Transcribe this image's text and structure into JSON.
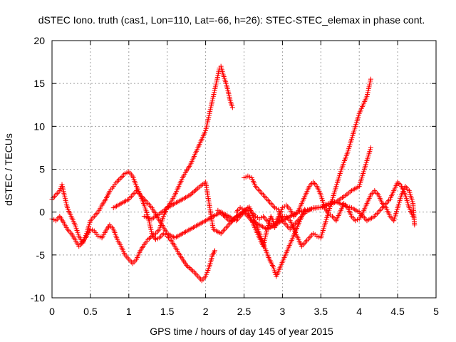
{
  "chart_data": {
    "type": "scatter",
    "title": "dSTEC Iono. truth (cas1, Lon=110, Lat=-66, h=26): STEC-STEC_elemax in phase cont.",
    "xlabel": "GPS time / hours of day 145 of year 2015",
    "ylabel": "dSTEC  / TECUs",
    "xlim": [
      0,
      5
    ],
    "ylim": [
      -10,
      20
    ],
    "grid": true,
    "marker": "+",
    "color": "#ff0000",
    "x_ticks": [
      "0",
      "0.5",
      "1",
      "1.5",
      "2",
      "2.5",
      "3",
      "3.5",
      "4",
      "4.5",
      "5"
    ],
    "y_ticks": [
      "-10",
      "-5",
      "0",
      "5",
      "10",
      "15",
      "20"
    ],
    "x_tick_values": [
      0,
      0.5,
      1,
      1.5,
      2,
      2.5,
      3,
      3.5,
      4,
      4.5,
      5
    ],
    "y_tick_values": [
      -10,
      -5,
      0,
      5,
      10,
      15,
      20
    ],
    "series": [
      {
        "x": [
          0.0,
          0.05,
          0.1,
          0.13,
          0.16,
          0.2,
          0.25,
          0.3,
          0.35,
          0.4,
          0.45,
          0.5,
          0.55,
          0.6,
          0.65,
          0.7,
          0.75,
          0.8,
          0.85,
          0.9,
          0.95,
          1.0,
          1.05,
          1.1,
          1.15,
          1.2,
          1.25,
          1.3,
          1.35,
          1.4,
          1.45,
          1.5,
          1.55,
          1.6,
          1.65,
          1.7,
          1.75,
          1.8,
          1.85,
          1.9,
          1.95,
          2.0,
          2.03,
          2.06,
          2.09,
          2.12
        ],
        "y": [
          1.5,
          2.0,
          2.5,
          3.2,
          2.0,
          0.5,
          -0.5,
          -1.5,
          -2.8,
          -3.6,
          -2.5,
          -1.0,
          -0.5,
          0.0,
          0.8,
          1.5,
          2.4,
          3.0,
          3.6,
          4.0,
          4.5,
          4.7,
          4.2,
          3.0,
          2.0,
          0.8,
          -0.5,
          -2.5,
          -3.2,
          -3.0,
          -2.5,
          -2.8,
          -3.3,
          -4.0,
          -4.8,
          -5.5,
          -6.2,
          -6.6,
          -7.0,
          -7.5,
          -8.0,
          -7.5,
          -6.8,
          -6.0,
          -5.0,
          -4.5
        ]
      },
      {
        "x": [
          0.0,
          0.05,
          0.1,
          0.15,
          0.2,
          0.25,
          0.3,
          0.35,
          0.4,
          0.45,
          0.5,
          0.55,
          0.6,
          0.65,
          0.7,
          0.75,
          0.8,
          0.85,
          0.9,
          0.95,
          1.0,
          1.05,
          1.1,
          1.15,
          1.2,
          1.25,
          1.3,
          1.35,
          1.4,
          1.45,
          1.5,
          1.55,
          1.6,
          1.65,
          1.7,
          1.75,
          1.8,
          1.85,
          1.9,
          1.95,
          2.0,
          2.05,
          2.1,
          2.15,
          2.18,
          2.2,
          2.23,
          2.26,
          2.29,
          2.32,
          2.35
        ],
        "y": [
          -0.8,
          -1.0,
          -0.5,
          -1.2,
          -2.0,
          -2.5,
          -3.2,
          -4.0,
          -3.5,
          -2.8,
          -2.0,
          -2.2,
          -2.8,
          -3.0,
          -2.2,
          -1.5,
          -2.0,
          -3.2,
          -4.0,
          -5.0,
          -5.5,
          -6.0,
          -5.5,
          -4.5,
          -3.8,
          -3.2,
          -2.8,
          -2.5,
          -2.0,
          -0.5,
          0.5,
          1.2,
          2.0,
          3.0,
          4.0,
          4.8,
          5.5,
          6.5,
          7.5,
          8.5,
          9.5,
          11.5,
          13.5,
          15.5,
          16.8,
          17.0,
          16.0,
          15.2,
          14.2,
          13.0,
          12.2
        ]
      },
      {
        "x": [
          0.8,
          0.9,
          1.0,
          1.1,
          1.2,
          1.3,
          1.4,
          1.5,
          1.6,
          1.7,
          1.8,
          1.9,
          2.0,
          2.1,
          2.2,
          2.3,
          2.4,
          2.45,
          2.5,
          2.55,
          2.6,
          2.65,
          2.7,
          2.75,
          2.8,
          2.85,
          2.9,
          2.95,
          3.0,
          3.05,
          3.1,
          3.15,
          3.2,
          3.25,
          3.3,
          3.35,
          3.4,
          3.45,
          3.5,
          3.55,
          3.6,
          3.65,
          3.7,
          3.75,
          3.8,
          3.85,
          3.9,
          3.95,
          4.0,
          4.05,
          4.1,
          4.15
        ],
        "y": [
          0.5,
          1.0,
          1.5,
          2.5,
          1.5,
          0.5,
          -1.0,
          -2.5,
          -3.0,
          -2.5,
          -2.0,
          -1.5,
          -1.0,
          -0.5,
          0.0,
          -0.5,
          -1.0,
          -0.5,
          0.0,
          0.5,
          0.0,
          -0.5,
          -0.8,
          -0.5,
          -1.0,
          -1.5,
          -1.8,
          -1.0,
          -0.5,
          -0.5,
          -1.0,
          -2.0,
          -3.0,
          -4.0,
          -3.5,
          -3.0,
          -2.5,
          -2.8,
          -3.0,
          -1.5,
          0.0,
          1.5,
          3.0,
          4.5,
          5.8,
          7.0,
          8.5,
          10.0,
          11.5,
          12.5,
          13.5,
          15.5
        ]
      },
      {
        "x": [
          1.2,
          1.3,
          1.4,
          1.5,
          1.6,
          1.7,
          1.8,
          1.9,
          2.0,
          2.1,
          2.2,
          2.3,
          2.4,
          2.5,
          2.6,
          2.7,
          2.8,
          2.9,
          3.0,
          3.1,
          3.2,
          3.3,
          3.4,
          3.5,
          3.6,
          3.7,
          3.8,
          3.9,
          4.0,
          4.05,
          4.1,
          4.15
        ],
        "y": [
          -0.5,
          -0.8,
          -0.2,
          0.5,
          1.0,
          1.5,
          2.0,
          2.8,
          3.5,
          -2.0,
          -2.5,
          -1.5,
          -0.5,
          0.0,
          -1.0,
          -1.5,
          -2.0,
          -1.5,
          -1.0,
          -0.5,
          0.0,
          0.2,
          0.4,
          0.6,
          0.8,
          1.2,
          1.8,
          2.5,
          3.0,
          4.5,
          6.0,
          7.5
        ]
      },
      {
        "x": [
          2.4,
          2.45,
          2.5,
          2.55,
          2.6,
          2.65,
          2.7,
          2.75,
          2.8,
          2.85,
          2.9,
          2.95,
          3.0,
          3.05,
          3.1,
          3.15,
          3.2,
          3.25,
          3.3,
          3.35,
          3.4,
          3.45,
          3.5,
          3.55,
          3.6,
          3.65,
          3.7,
          3.75,
          3.8,
          3.85,
          3.9,
          3.95,
          4.0,
          4.05,
          4.1,
          4.15,
          4.2,
          4.25,
          4.3,
          4.35,
          4.4,
          4.45,
          4.5,
          4.55,
          4.6,
          4.65,
          4.7,
          4.72
        ],
        "y": [
          0.0,
          0.5,
          0.3,
          0.0,
          -1.0,
          -2.0,
          -3.0,
          -4.0,
          -2.0,
          -0.5,
          -1.5,
          -0.5,
          0.5,
          0.8,
          0.3,
          -0.5,
          0.0,
          1.0,
          2.0,
          3.0,
          3.5,
          3.0,
          2.0,
          0.5,
          -0.2,
          -0.5,
          -1.0,
          0.0,
          1.0,
          0.5,
          -0.5,
          -1.0,
          -0.8,
          0.0,
          1.0,
          2.0,
          2.5,
          2.0,
          1.0,
          0.5,
          -0.5,
          -1.0,
          0.5,
          2.0,
          3.0,
          2.5,
          1.0,
          -1.5
        ]
      },
      {
        "x": [
          2.5,
          2.55,
          2.6,
          2.65,
          2.7,
          2.75,
          2.8,
          2.85,
          2.9,
          2.95,
          3.0,
          3.05,
          3.1,
          3.2,
          3.3,
          3.4,
          3.5,
          3.6,
          3.7,
          3.8,
          3.9,
          4.0,
          4.1,
          4.2,
          4.3,
          4.4,
          4.45,
          4.5,
          4.55,
          4.6,
          4.65,
          4.7
        ],
        "y": [
          4.0,
          4.2,
          4.0,
          3.0,
          2.5,
          2.0,
          1.5,
          1.0,
          0.5,
          0.3,
          -1.0,
          -1.5,
          -2.0,
          -1.0,
          0.0,
          0.5,
          0.5,
          1.0,
          1.2,
          0.8,
          0.5,
          0.0,
          -1.0,
          -0.5,
          0.5,
          1.5,
          2.5,
          3.5,
          3.0,
          2.0,
          0.5,
          -0.5
        ]
      },
      {
        "x": [
          2.16,
          2.32,
          2.57,
          2.82,
          2.88,
          2.92,
          3.29
        ],
        "y": [
          0.2,
          -1.1,
          0.6,
          -5.3,
          -6.4,
          -7.5,
          0.3
        ]
      }
    ]
  }
}
